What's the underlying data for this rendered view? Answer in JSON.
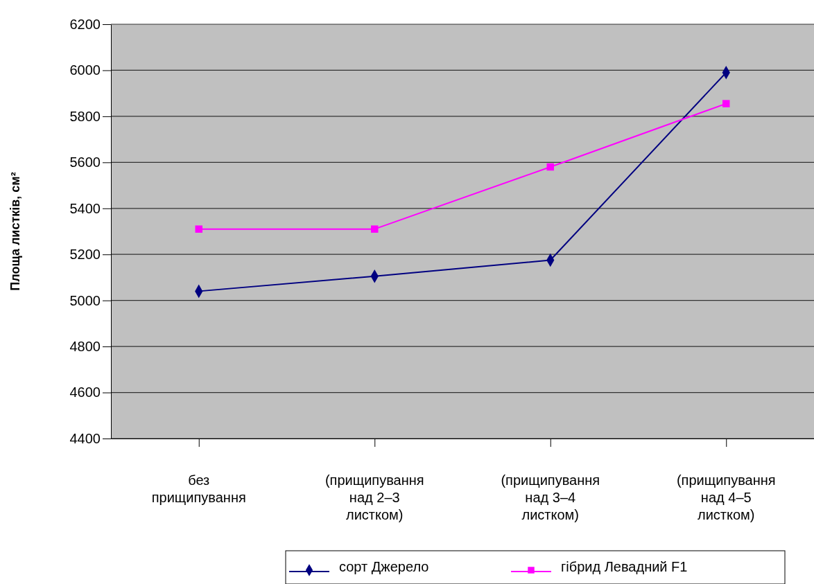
{
  "chart_data": {
    "type": "line",
    "ylabel": "Площа листків, см²",
    "categories": [
      "без прищипування",
      "(прищипування над 2–3 листком)",
      "(прищипування над 3–4 листком)",
      "(прищипування над 4–5 листком)"
    ],
    "series": [
      {
        "name": "сорт Джерело",
        "color": "#000080",
        "marker": "diamond",
        "values": [
          5040,
          5105,
          5175,
          5990
        ]
      },
      {
        "name": "гібрид Левадний F1",
        "color": "#ff00ff",
        "marker": "square",
        "values": [
          5310,
          5310,
          5580,
          5855
        ]
      }
    ],
    "ylim": [
      4400,
      6200
    ],
    "yticks": [
      4400,
      4600,
      4800,
      5000,
      5200,
      5400,
      5600,
      5800,
      6000,
      6200
    ],
    "grid": "y",
    "legend": "bottom"
  }
}
